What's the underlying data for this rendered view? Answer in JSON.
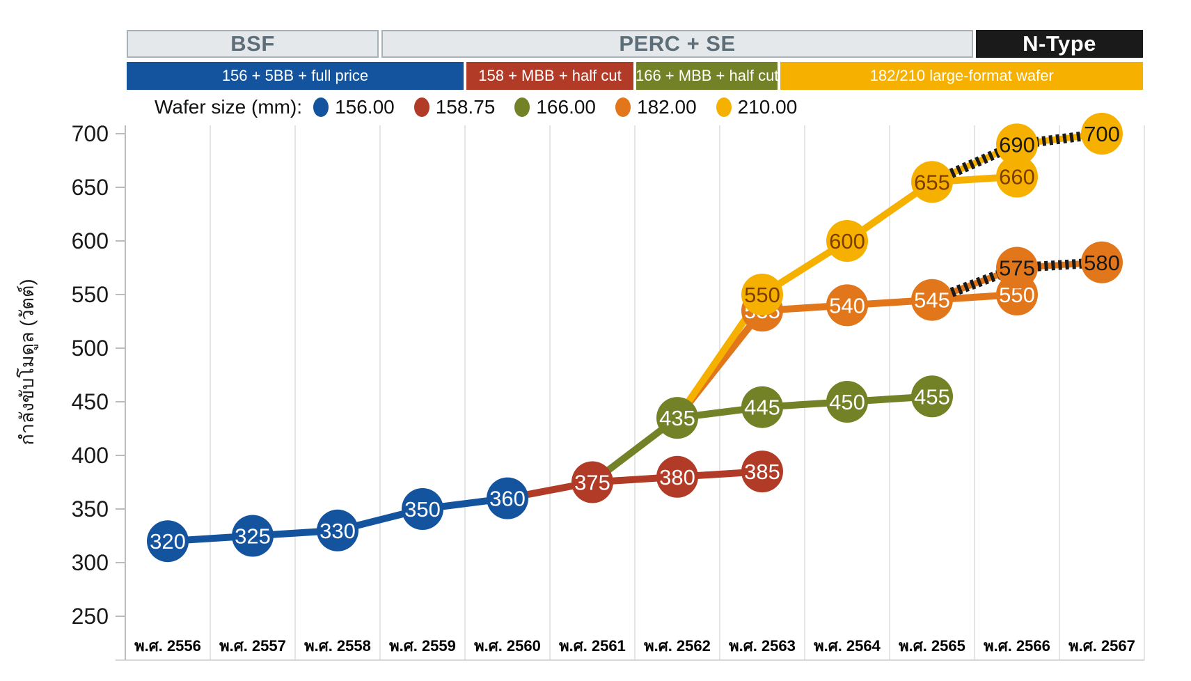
{
  "headers": {
    "tech_groups": [
      {
        "label": "BSF",
        "bg": "#E4E8EA",
        "fg": "#5D6E78",
        "col_start": 0,
        "col_end": 3
      },
      {
        "label": "PERC + SE",
        "bg": "#E4E8EA",
        "fg": "#5D6E78",
        "col_start": 3,
        "col_end": 10
      },
      {
        "label": "N-Type",
        "bg": "#1A1A1A",
        "fg": "#FFFFFF",
        "col_start": 10,
        "col_end": 12
      }
    ],
    "tech_bars": [
      {
        "label": "156 + 5BB + full price",
        "bg": "#14549E",
        "col_start": 0,
        "col_end": 4
      },
      {
        "label": "158 + MBB + half cut",
        "bg": "#B23B27",
        "col_start": 4,
        "col_end": 6
      },
      {
        "label": "166 + MBB + half cut",
        "bg": "#738227",
        "col_start": 6,
        "col_end": 7.7
      },
      {
        "label": "182/210 large-format wafer",
        "bg": "#F5B000",
        "col_start": 7.7,
        "col_end": 12
      }
    ]
  },
  "legend": {
    "title": "Wafer size (mm):",
    "items": [
      {
        "label": "156.00",
        "color": "#14549E"
      },
      {
        "label": "158.75",
        "color": "#B23B27"
      },
      {
        "label": "166.00",
        "color": "#738227"
      },
      {
        "label": "182.00",
        "color": "#E2761B"
      },
      {
        "label": "210.00",
        "color": "#F5B000"
      }
    ]
  },
  "chart_data": {
    "type": "line",
    "title": "",
    "xlabel": "",
    "ylabel": "กำลังขับโมดูล (วัตต์)",
    "ylim": [
      250,
      700
    ],
    "yticks": [
      250,
      300,
      350,
      400,
      450,
      500,
      550,
      600,
      650,
      700
    ],
    "grid": "vertical-only",
    "legend_position": "top",
    "x_categories": [
      "พ.ศ. 2556",
      "พ.ศ. 2557",
      "พ.ศ. 2558",
      "พ.ศ. 2559",
      "พ.ศ. 2560",
      "พ.ศ. 2561",
      "พ.ศ. 2562",
      "พ.ศ. 2563",
      "พ.ศ. 2564",
      "พ.ศ. 2565",
      "พ.ศ. 2566",
      "พ.ศ. 2567"
    ],
    "series": [
      {
        "name": "156.00",
        "color": "#14549E",
        "lines": [
          {
            "style": "solid",
            "pts": [
              [
                0,
                320
              ],
              [
                1,
                325
              ],
              [
                2,
                330
              ],
              [
                3,
                350
              ],
              [
                4,
                360
              ]
            ]
          }
        ],
        "points": [
          {
            "x": 0,
            "v": 320,
            "tc": "#FFFFFF"
          },
          {
            "x": 1,
            "v": 325,
            "tc": "#FFFFFF"
          },
          {
            "x": 2,
            "v": 330,
            "tc": "#FFFFFF"
          },
          {
            "x": 3,
            "v": 350,
            "tc": "#FFFFFF"
          },
          {
            "x": 4,
            "v": 360,
            "tc": "#FFFFFF"
          }
        ]
      },
      {
        "name": "158.75",
        "color": "#B23B27",
        "lines": [
          {
            "style": "solid",
            "pts": [
              [
                4,
                360
              ],
              [
                5,
                375
              ],
              [
                6,
                380
              ],
              [
                7,
                385
              ]
            ]
          }
        ],
        "points": [
          {
            "x": 5,
            "v": 375,
            "tc": "#FFFFFF"
          },
          {
            "x": 6,
            "v": 380,
            "tc": "#FFFFFF"
          },
          {
            "x": 7,
            "v": 385,
            "tc": "#FFFFFF"
          }
        ]
      },
      {
        "name": "166.00",
        "color": "#738227",
        "lines": [
          {
            "style": "solid",
            "pts": [
              [
                5,
                375
              ],
              [
                6,
                435
              ],
              [
                7,
                445
              ],
              [
                8,
                450
              ],
              [
                9,
                455
              ]
            ]
          }
        ],
        "points": [
          {
            "x": 6,
            "v": 435,
            "tc": "#FFFFFF"
          },
          {
            "x": 7,
            "v": 445,
            "tc": "#FFFFFF"
          },
          {
            "x": 8,
            "v": 450,
            "tc": "#FFFFFF"
          },
          {
            "x": 9,
            "v": 455,
            "tc": "#FFFFFF"
          }
        ]
      },
      {
        "name": "182.00",
        "color": "#E2761B",
        "lines": [
          {
            "style": "solid",
            "pts": [
              [
                6,
                435
              ],
              [
                7,
                535
              ],
              [
                8,
                540
              ],
              [
                9,
                545
              ],
              [
                10,
                550
              ]
            ]
          },
          {
            "style": "hatched",
            "pts": [
              [
                9,
                545
              ],
              [
                10,
                575
              ],
              [
                11,
                580
              ]
            ]
          }
        ],
        "points": [
          {
            "x": 7,
            "v": 535,
            "tc": "#FFFFFF"
          },
          {
            "x": 8,
            "v": 540,
            "tc": "#FFFFFF"
          },
          {
            "x": 9,
            "v": 545,
            "tc": "#FFFFFF"
          },
          {
            "x": 10,
            "v": 550,
            "tc": "#FFFFFF"
          },
          {
            "x": 10,
            "v": 575,
            "tc": "#1A1A1A"
          },
          {
            "x": 11,
            "v": 580,
            "tc": "#1A1A1A"
          }
        ]
      },
      {
        "name": "210.00",
        "color": "#F5B000",
        "lines": [
          {
            "style": "solid",
            "pts": [
              [
                6,
                435
              ],
              [
                7,
                550
              ],
              [
                8,
                600
              ],
              [
                9,
                655
              ],
              [
                10,
                660
              ]
            ]
          },
          {
            "style": "hatched",
            "pts": [
              [
                9,
                655
              ],
              [
                10,
                690
              ],
              [
                11,
                700
              ]
            ]
          }
        ],
        "points": [
          {
            "x": 7,
            "v": 550,
            "tc": "#7C3D00"
          },
          {
            "x": 8,
            "v": 600,
            "tc": "#7C3D00"
          },
          {
            "x": 9,
            "v": 655,
            "tc": "#7C3D00"
          },
          {
            "x": 10,
            "v": 660,
            "tc": "#7C3D00"
          },
          {
            "x": 10,
            "v": 690,
            "tc": "#1A1A1A"
          },
          {
            "x": 11,
            "v": 700,
            "tc": "#1A1A1A"
          }
        ]
      }
    ]
  }
}
